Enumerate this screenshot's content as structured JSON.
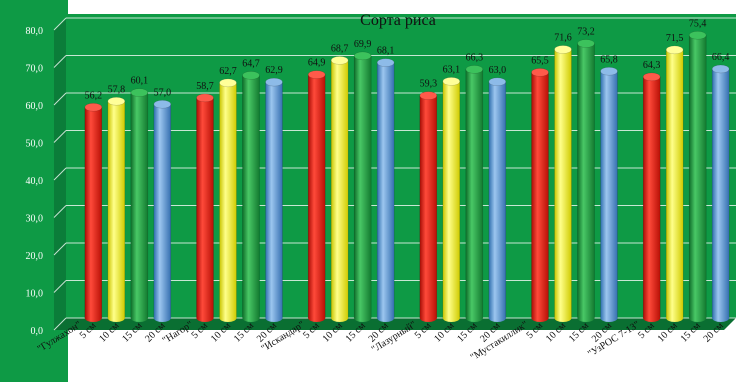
{
  "chart_data": {
    "type": "bar",
    "title": "Сорта риса",
    "ylim": [
      0,
      80
    ],
    "yticks": [
      "0,0",
      "10,0",
      "20,0",
      "30,0",
      "40,0",
      "50,0",
      "60,0",
      "70,0",
      "80,0"
    ],
    "grid": true,
    "groups": [
      {
        "name": "\"Гулжахон\"",
        "bars": [
          {
            "label": "5 см",
            "value": 56.2,
            "text": "56,2"
          },
          {
            "label": "10 см",
            "value": 57.8,
            "text": "57,8"
          },
          {
            "label": "15 см",
            "value": 60.1,
            "text": "60,1"
          },
          {
            "label": "20 см",
            "value": 57.0,
            "text": "57,0"
          }
        ]
      },
      {
        "name": "\"Нагор\"",
        "bars": [
          {
            "label": "5 см",
            "value": 58.7,
            "text": "58,7"
          },
          {
            "label": "10 см",
            "value": 62.7,
            "text": "62,7"
          },
          {
            "label": "15 см",
            "value": 64.7,
            "text": "64,7"
          },
          {
            "label": "20 см",
            "value": 62.9,
            "text": "62,9"
          }
        ]
      },
      {
        "name": "\"Искандар\"",
        "bars": [
          {
            "label": "5 см",
            "value": 64.9,
            "text": "64,9"
          },
          {
            "label": "10 см",
            "value": 68.7,
            "text": "68,7"
          },
          {
            "label": "15 см",
            "value": 69.9,
            "text": "69,9"
          },
          {
            "label": "20 см",
            "value": 68.1,
            "text": "68,1"
          }
        ]
      },
      {
        "name": "\"Лазурный\"",
        "bars": [
          {
            "label": "5 см",
            "value": 59.3,
            "text": "59,3"
          },
          {
            "label": "10 см",
            "value": 63.1,
            "text": "63,1"
          },
          {
            "label": "15 см",
            "value": 66.3,
            "text": "66,3"
          },
          {
            "label": "20 см",
            "value": 63.0,
            "text": "63,0"
          }
        ]
      },
      {
        "name": "\"Мустакиллик\"",
        "bars": [
          {
            "label": "5 см",
            "value": 65.5,
            "text": "65,5"
          },
          {
            "label": "10 см",
            "value": 71.6,
            "text": "71,6"
          },
          {
            "label": "15 см",
            "value": 73.2,
            "text": "73,2"
          },
          {
            "label": "20 см",
            "value": 65.8,
            "text": "65,8"
          }
        ]
      },
      {
        "name": "\"УзРОС 7-13\"",
        "bars": [
          {
            "label": "5 см",
            "value": 64.3,
            "text": "64,3"
          },
          {
            "label": "10 см",
            "value": 71.5,
            "text": "71,5"
          },
          {
            "label": "15 см",
            "value": 75.4,
            "text": "75,4"
          },
          {
            "label": "20 см",
            "value": 66.4,
            "text": "66,4"
          }
        ]
      }
    ],
    "colors": {
      "5 см": "#ee1c0f",
      "10 см": "#ffff1a",
      "15 см": "#22a845",
      "20 см": "#5b9bd9",
      "plot_bg": "#0e9a45",
      "wall": "#0b7d39",
      "floor": "#0a6f32",
      "grid": "#e8f5ec"
    }
  }
}
